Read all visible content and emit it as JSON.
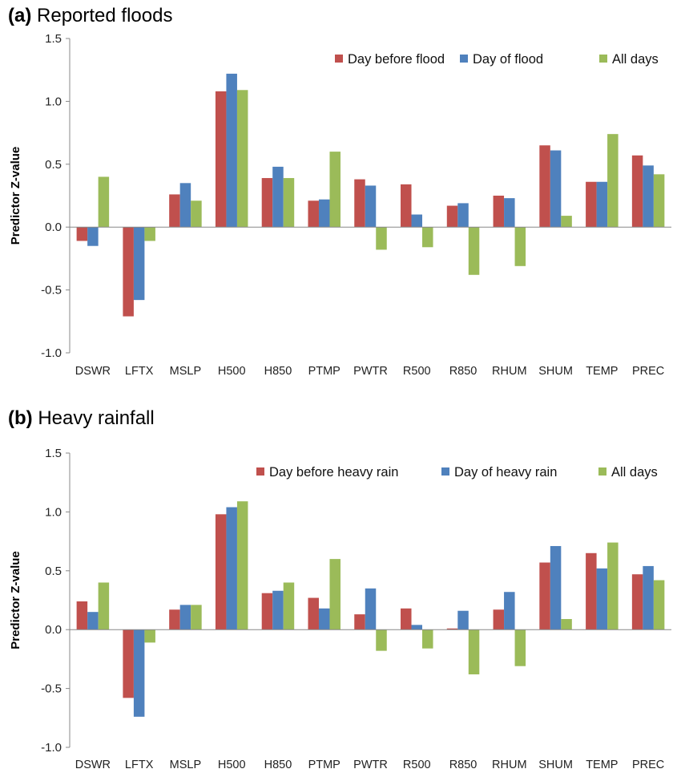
{
  "chart_data": [
    {
      "type": "bar",
      "panel_letter": "(a)",
      "title": "Reported floods",
      "ylabel": "Predictor Z-value",
      "ylim": [
        -1.0,
        1.5
      ],
      "yticks": [
        "1.5",
        "1.0",
        "0.5",
        "0.0",
        "-0.5",
        "-1.0"
      ],
      "ytick_values": [
        1.5,
        1.0,
        0.5,
        0.0,
        -0.5,
        -1.0
      ],
      "legend_position": "top-right",
      "categories": [
        "DSWR",
        "LFTX",
        "MSLP",
        "H500",
        "H850",
        "PTMP",
        "PWTR",
        "R500",
        "R850",
        "RHUM",
        "SHUM",
        "TEMP",
        "PREC"
      ],
      "series": [
        {
          "name": "Day before flood",
          "color": "#c0504d",
          "values": [
            -0.11,
            -0.71,
            0.26,
            1.08,
            0.39,
            0.21,
            0.38,
            0.34,
            0.17,
            0.25,
            0.65,
            0.36,
            0.57
          ]
        },
        {
          "name": "Day of flood",
          "color": "#4f81bd",
          "values": [
            -0.15,
            -0.58,
            0.35,
            1.22,
            0.48,
            0.22,
            0.33,
            0.1,
            0.19,
            0.23,
            0.61,
            0.36,
            0.49
          ]
        },
        {
          "name": "All days",
          "color": "#9bbb59",
          "values": [
            0.4,
            -0.11,
            0.21,
            1.09,
            0.39,
            0.6,
            -0.18,
            -0.16,
            -0.38,
            -0.31,
            0.09,
            0.74,
            0.42
          ]
        }
      ]
    },
    {
      "type": "bar",
      "panel_letter": "(b)",
      "title": "Heavy rainfall",
      "ylabel": "Predictor Z-value",
      "ylim": [
        -1.0,
        1.5
      ],
      "yticks": [
        "1.5",
        "1.0",
        "0.5",
        "0.0",
        "-0.5",
        "-1.0"
      ],
      "ytick_values": [
        1.5,
        1.0,
        0.5,
        0.0,
        -0.5,
        -1.0
      ],
      "legend_position": "top-right",
      "categories": [
        "DSWR",
        "LFTX",
        "MSLP",
        "H500",
        "H850",
        "PTMP",
        "PWTR",
        "R500",
        "R850",
        "RHUM",
        "SHUM",
        "TEMP",
        "PREC"
      ],
      "series": [
        {
          "name": "Day before heavy rain",
          "color": "#c0504d",
          "values": [
            0.24,
            -0.58,
            0.17,
            0.98,
            0.31,
            0.27,
            0.13,
            0.18,
            0.01,
            0.17,
            0.57,
            0.65,
            0.47
          ]
        },
        {
          "name": "Day of heavy rain",
          "color": "#4f81bd",
          "values": [
            0.15,
            -0.74,
            0.21,
            1.04,
            0.33,
            0.18,
            0.35,
            0.04,
            0.16,
            0.32,
            0.71,
            0.52,
            0.54
          ]
        },
        {
          "name": "All days",
          "color": "#9bbb59",
          "values": [
            0.4,
            -0.11,
            0.21,
            1.09,
            0.4,
            0.6,
            -0.18,
            -0.16,
            -0.38,
            -0.31,
            0.09,
            0.74,
            0.42
          ]
        }
      ]
    }
  ]
}
